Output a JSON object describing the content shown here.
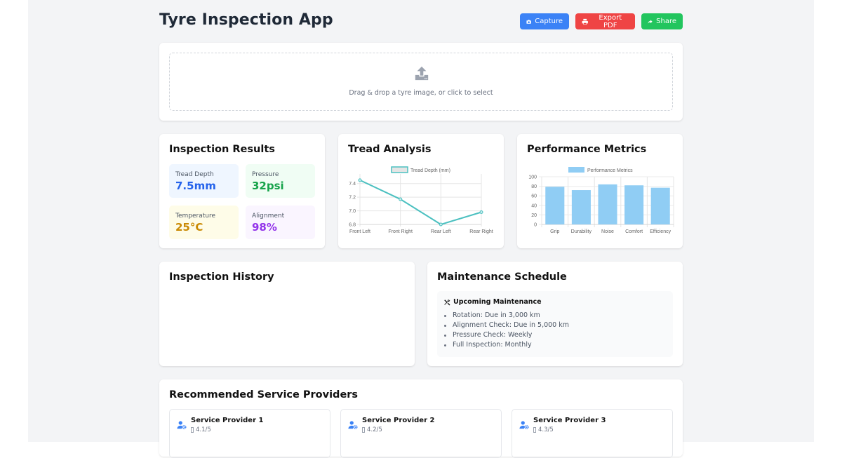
{
  "app": {
    "title": "Tyre Inspection App"
  },
  "toolbar": {
    "capture_label": "Capture",
    "export_label": "Export PDF",
    "share_label": "Share",
    "colors": {
      "capture": "#3b82f6",
      "export": "#ef4444",
      "share": "#22c55e"
    }
  },
  "upload": {
    "icon": "upload-icon",
    "text": "Drag & drop a tyre image, or click to select"
  },
  "inspection_results": {
    "title": "Inspection Results",
    "metrics": [
      {
        "label": "Tread Depth",
        "value": "7.5mm",
        "color": "#2563eb"
      },
      {
        "label": "Pressure",
        "value": "32psi",
        "color": "#16a34a"
      },
      {
        "label": "Temperature",
        "value": "25°C",
        "color": "#ca8a04"
      },
      {
        "label": "Alignment",
        "value": "98%",
        "color": "#9333ea"
      }
    ]
  },
  "tread_analysis": {
    "title": "Tread Analysis"
  },
  "performance": {
    "title": "Performance Metrics"
  },
  "history": {
    "title": "Inspection History"
  },
  "maintenance": {
    "title": "Maintenance Schedule",
    "heading": "Upcoming Maintenance",
    "icon": "tools-icon",
    "items": [
      "Rotation: Due in 3,000 km",
      "Alignment Check: Due in 5,000 km",
      "Pressure Check: Weekly",
      "Full Inspection: Monthly"
    ]
  },
  "providers": {
    "title": "Recommended Service Providers",
    "items": [
      {
        "name": "Service Provider 1",
        "rating": "4.1/5"
      },
      {
        "name": "Service Provider 2",
        "rating": "4.2/5"
      },
      {
        "name": "Service Provider 3",
        "rating": "4.3/5"
      }
    ]
  },
  "chart_data": [
    {
      "type": "line",
      "title": "Tread Analysis",
      "categories": [
        "Front Left",
        "Front Right",
        "Rear Left",
        "Rear Right"
      ],
      "series": [
        {
          "name": "Tread Depth (mm)",
          "values": [
            7.45,
            7.17,
            6.8,
            6.98
          ],
          "color": "#4bc0c0"
        }
      ],
      "yticks": [
        "6.8",
        "7.0",
        "7.2",
        "7.4"
      ],
      "ylim": [
        6.8,
        7.5
      ],
      "legend_position": "top",
      "grid": true
    },
    {
      "type": "bar",
      "title": "Performance Metrics",
      "categories": [
        "Grip",
        "Durability",
        "Noise",
        "Comfort",
        "Efficiency"
      ],
      "series": [
        {
          "name": "Performance Metrics",
          "values": [
            79,
            72,
            84,
            82,
            77
          ],
          "color": "#90cdf4"
        }
      ],
      "yticks": [
        "0",
        "20",
        "40",
        "60",
        "80",
        "100"
      ],
      "ylim": [
        0,
        100
      ],
      "legend_position": "top",
      "grid": true
    }
  ]
}
